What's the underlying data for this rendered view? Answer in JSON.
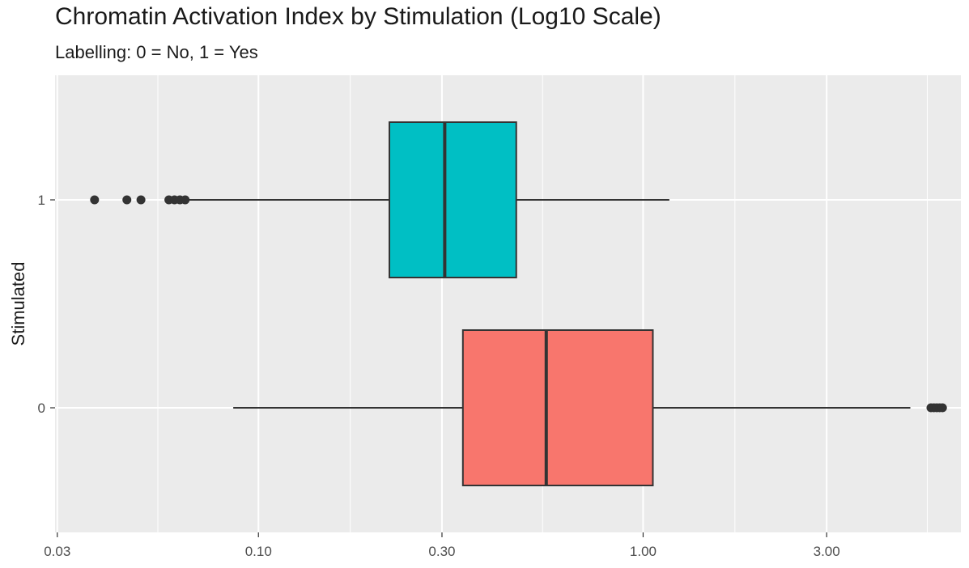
{
  "chart_data": {
    "type": "boxplot",
    "orientation": "horizontal",
    "title": "Chromatin Activation Index by Stimulation (Log10 Scale)",
    "subtitle": "Labelling: 0 = No, 1 = Yes",
    "xlabel": "",
    "ylabel": "Stimulated",
    "x_scale": "log10",
    "xlim": [
      0.0296,
      6.7
    ],
    "x_ticks": [
      0.03,
      0.1,
      0.3,
      1.0,
      3.0
    ],
    "x_tick_labels": [
      "0.03",
      "0.10",
      "0.30",
      "1.00",
      "3.00"
    ],
    "categories": [
      "0",
      "1"
    ],
    "grid": true,
    "legend": "none",
    "boxes": [
      {
        "category": "0",
        "fill": "#F8766D",
        "whisker_low": 0.086,
        "q1": 0.34,
        "median": 0.56,
        "q3": 1.06,
        "whisker_high": 4.95,
        "outliers": [
          5.6,
          5.7,
          5.8,
          5.9,
          6.0
        ]
      },
      {
        "category": "1",
        "fill": "#00BFC4",
        "whisker_low": 0.066,
        "q1": 0.219,
        "median": 0.305,
        "q3": 0.468,
        "whisker_high": 1.17,
        "outliers": [
          0.0375,
          0.0455,
          0.0495,
          0.0585,
          0.0605,
          0.0625,
          0.0645
        ]
      }
    ]
  }
}
